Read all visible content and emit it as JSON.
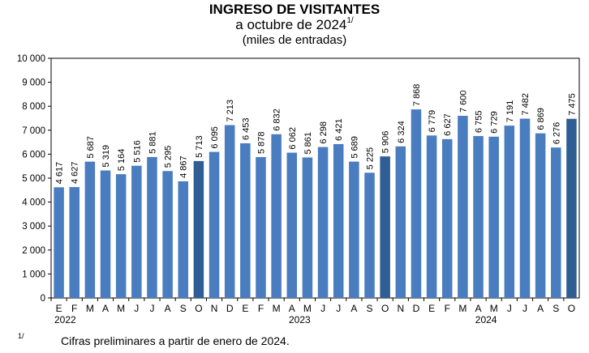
{
  "header": {
    "title": "INGRESO DE VISITANTES",
    "subtitle": "a octubre de 2024",
    "subtitle_note": "1/",
    "units": "(miles de entradas)"
  },
  "footnote": {
    "marker": "1/",
    "text": "Cifras preliminares a partir de enero de 2024."
  },
  "colors": {
    "bar": "#4a7cc0",
    "bar_highlight": "#2f5e95",
    "frame": "#000000"
  },
  "chart_data": {
    "type": "bar",
    "title": "INGRESO DE VISITANTES",
    "subtitle": "a octubre de 2024 1/",
    "ylabel": "(miles de entradas)",
    "xlabel": "",
    "ylim": [
      0,
      10000
    ],
    "yticks": [
      0,
      1000,
      2000,
      3000,
      4000,
      5000,
      6000,
      7000,
      8000,
      9000,
      10000
    ],
    "ytick_labels": [
      "0",
      "1 000",
      "2 000",
      "3 000",
      "4 000",
      "5 000",
      "6 000",
      "7 000",
      "8 000",
      "9 000",
      "10 000"
    ],
    "categories": [
      "E",
      "F",
      "M",
      "A",
      "M",
      "J",
      "J",
      "A",
      "S",
      "O",
      "N",
      "D",
      "E",
      "F",
      "M",
      "A",
      "M",
      "J",
      "J",
      "A",
      "S",
      "O",
      "N",
      "D",
      "E",
      "F",
      "M",
      "A",
      "M",
      "J",
      "J",
      "A",
      "S",
      "O"
    ],
    "values": [
      4617,
      4627,
      5687,
      5319,
      5164,
      5516,
      5881,
      5295,
      4867,
      5713,
      6095,
      7213,
      6453,
      5878,
      6832,
      6062,
      5861,
      6298,
      6421,
      5689,
      5225,
      5906,
      6324,
      7868,
      6779,
      6627,
      7600,
      6755,
      6729,
      7191,
      7482,
      6869,
      6276,
      7475
    ],
    "value_labels": [
      "4 617",
      "4 627",
      "5 687",
      "5 319",
      "5 164",
      "5 516",
      "5 881",
      "5 295",
      "4 867",
      "5 713",
      "6 095",
      "7 213",
      "6 453",
      "5 878",
      "6 832",
      "6 062",
      "5 861",
      "6 298",
      "6 421",
      "5 689",
      "5 225",
      "5 906",
      "6 324",
      "7 868",
      "6 779",
      "6 627",
      "7 600",
      "6 755",
      "6 729",
      "7 191",
      "7 482",
      "6 869",
      "6 276",
      "7 475"
    ],
    "highlight_indices": [
      9,
      21,
      33
    ],
    "year_groups": [
      {
        "label": "2022",
        "start": 0,
        "end": 9
      },
      {
        "label": "2023",
        "start": 10,
        "end": 21
      },
      {
        "label": "2024",
        "start": 22,
        "end": 33
      }
    ],
    "grid": false
  }
}
